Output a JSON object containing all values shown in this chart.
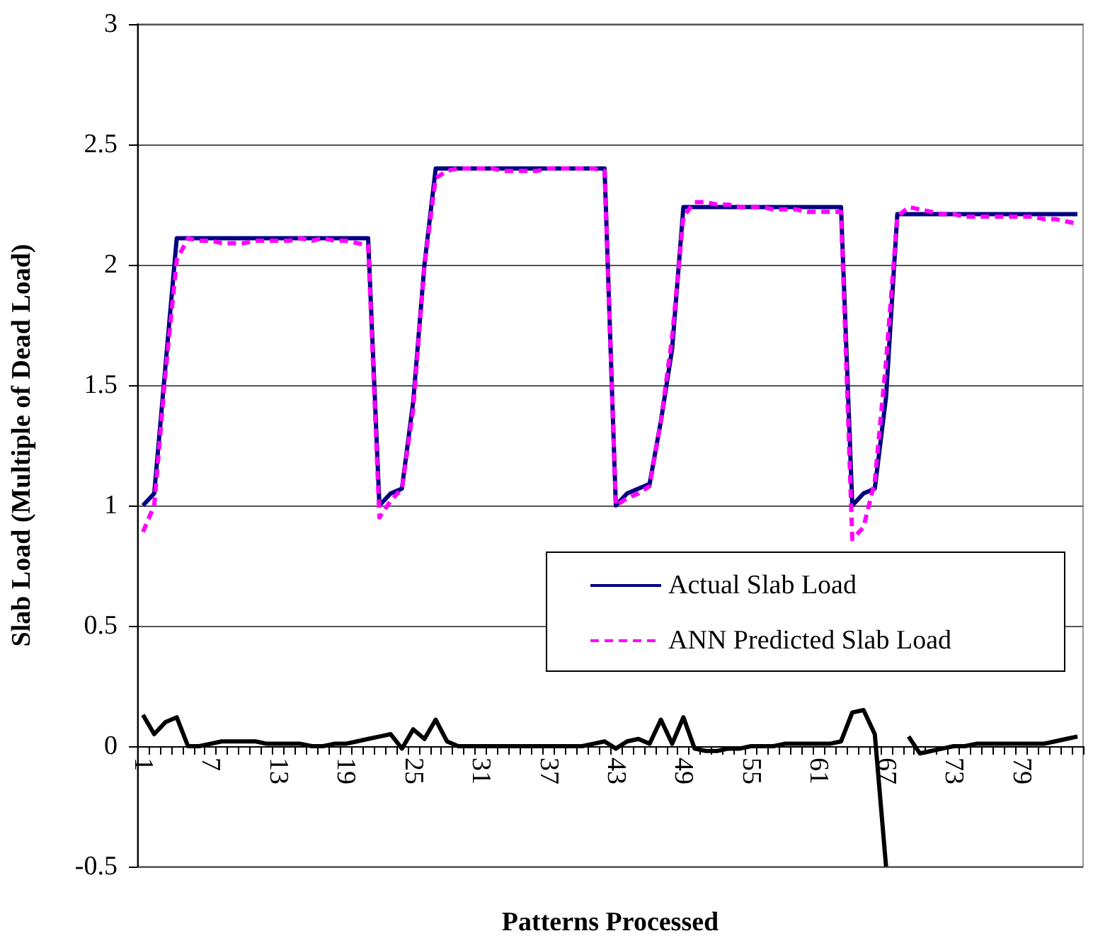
{
  "chart_data": {
    "type": "line",
    "xlabel": "Patterns Processed",
    "ylabel": "Slab Load (Multiple of Dead Load)",
    "categories": [
      "1",
      null,
      null,
      null,
      null,
      null,
      "7",
      null,
      null,
      null,
      null,
      null,
      "13",
      null,
      null,
      null,
      null,
      null,
      "19",
      null,
      null,
      null,
      null,
      null,
      "25",
      null,
      null,
      null,
      null,
      null,
      "31",
      null,
      null,
      null,
      null,
      null,
      "37",
      null,
      null,
      null,
      null,
      null,
      "43",
      null,
      null,
      null,
      null,
      null,
      "49",
      null,
      null,
      null,
      null,
      null,
      "55",
      null,
      null,
      null,
      null,
      null,
      "61",
      null,
      null,
      null,
      null,
      null,
      "67",
      null,
      null,
      null,
      null,
      null,
      "73",
      null,
      null,
      null,
      null,
      null,
      "79",
      null,
      null,
      null,
      null,
      null
    ],
    "series": [
      {
        "name": "Actual Slab Load",
        "color": "#000080",
        "line_style": "solid",
        "values": [
          1.0,
          1.05,
          1.58,
          2.11,
          2.11,
          2.11,
          2.11,
          2.11,
          2.11,
          2.11,
          2.11,
          2.11,
          2.11,
          2.11,
          2.11,
          2.11,
          2.11,
          2.11,
          2.11,
          2.11,
          2.11,
          1.0,
          1.05,
          1.07,
          1.43,
          2.0,
          2.4,
          2.4,
          2.4,
          2.4,
          2.4,
          2.4,
          2.4,
          2.4,
          2.4,
          2.4,
          2.4,
          2.4,
          2.4,
          2.4,
          2.4,
          2.4,
          1.0,
          1.05,
          1.07,
          1.09,
          1.35,
          1.65,
          2.24,
          2.24,
          2.24,
          2.24,
          2.24,
          2.24,
          2.24,
          2.24,
          2.24,
          2.24,
          2.24,
          2.24,
          2.24,
          2.24,
          2.24,
          1.0,
          1.05,
          1.07,
          1.45,
          2.21,
          2.21,
          2.21,
          2.21,
          2.21,
          2.21,
          2.21,
          2.21,
          2.21,
          2.21,
          2.21,
          2.21,
          2.21,
          2.21,
          2.21,
          2.21,
          2.21
        ]
      },
      {
        "name": "ANN Predicted Slab Load",
        "color": "#ff00ff",
        "line_style": "dashed",
        "values": [
          0.89,
          1.0,
          1.55,
          2.02,
          2.11,
          2.1,
          2.1,
          2.09,
          2.09,
          2.09,
          2.1,
          2.1,
          2.1,
          2.1,
          2.11,
          2.1,
          2.11,
          2.1,
          2.1,
          2.09,
          2.08,
          0.95,
          1.02,
          1.07,
          1.4,
          2.0,
          2.36,
          2.39,
          2.4,
          2.4,
          2.4,
          2.4,
          2.39,
          2.39,
          2.39,
          2.39,
          2.4,
          2.4,
          2.4,
          2.4,
          2.4,
          2.39,
          1.0,
          1.03,
          1.05,
          1.08,
          1.35,
          1.7,
          2.2,
          2.26,
          2.26,
          2.25,
          2.25,
          2.24,
          2.24,
          2.24,
          2.23,
          2.23,
          2.23,
          2.22,
          2.22,
          2.22,
          2.22,
          0.86,
          0.91,
          1.1,
          1.6,
          2.2,
          2.24,
          2.23,
          2.22,
          2.21,
          2.21,
          2.2,
          2.2,
          2.2,
          2.2,
          2.2,
          2.2,
          2.2,
          2.19,
          2.19,
          2.18,
          2.17
        ]
      },
      {
        "color": "#000000",
        "line_style": "solid",
        "values": [
          0.13,
          0.05,
          0.1,
          0.12,
          0,
          0,
          0.01,
          0.02,
          0.02,
          0.02,
          0.02,
          0.01,
          0.01,
          0.01,
          0.01,
          0,
          0,
          0.01,
          0.01,
          0.02,
          0.03,
          0.04,
          0.05,
          -0.01,
          0.07,
          0.03,
          0.11,
          0.02,
          0,
          0,
          0,
          0,
          0,
          0,
          0,
          0,
          0,
          0,
          0,
          0,
          0.01,
          0.02,
          -0.01,
          0.02,
          0.03,
          0.01,
          0.11,
          0.01,
          0.12,
          -0.01,
          -0.02,
          -0.02,
          -0.01,
          -0.01,
          0,
          0,
          0,
          0.01,
          0.01,
          0.01,
          0.01,
          0.01,
          0.02,
          0.14,
          0.15,
          0.05,
          -0.5,
          null,
          0.04,
          -0.03,
          -0.02,
          -0.01,
          0,
          0,
          0.01,
          0.01,
          0.01,
          0.01,
          0.01,
          0.01,
          0.01,
          0.02,
          0.03,
          0.04
        ]
      }
    ],
    "ylim": [
      -0.5,
      3
    ],
    "yticks": [
      -0.5,
      0,
      0.5,
      1,
      1.5,
      2,
      2.5,
      3
    ],
    "grid": "y",
    "legend": "right",
    "marker": "none"
  }
}
